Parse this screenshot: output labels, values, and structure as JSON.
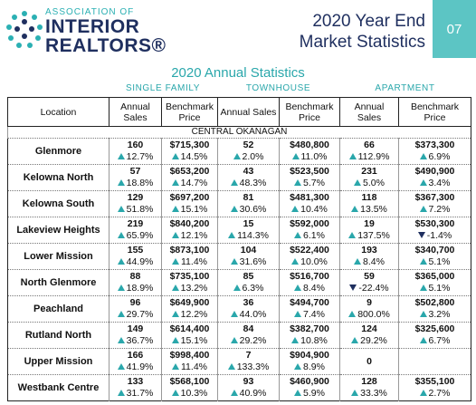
{
  "header": {
    "logo": {
      "line1": "ASSOCIATION OF",
      "line2": "INTERIOR",
      "line3": "REALTORS®"
    },
    "title": {
      "line1": "2020 Year End",
      "line2": "Market Statistics"
    },
    "page_number": "07"
  },
  "subtitle": "2020 Annual Statistics",
  "groups": [
    "SINGLE FAMILY",
    "TOWNHOUSE",
    "APARTMENT"
  ],
  "table": {
    "columns": [
      "Location",
      "Annual Sales",
      "Benchmark Price",
      "Annual Sales",
      "Benchmark Price",
      "Annual Sales",
      "Benchmark Price"
    ],
    "section": "CENTRAL OKANAGAN",
    "rows": [
      {
        "location": "Glenmore",
        "cells": [
          {
            "value": "160",
            "change": "12.7%"
          },
          {
            "value": "$715,300",
            "change": "14.5%"
          },
          {
            "value": "52",
            "change": "2.0%"
          },
          {
            "value": "$480,800",
            "change": "11.0%"
          },
          {
            "value": "66",
            "change": "112.9%"
          },
          {
            "value": "$373,300",
            "change": "6.9%"
          }
        ]
      },
      {
        "location": "Kelowna North",
        "cells": [
          {
            "value": "57",
            "change": "18.8%"
          },
          {
            "value": "$653,200",
            "change": "14.7%"
          },
          {
            "value": "43",
            "change": "48.3%"
          },
          {
            "value": "$523,500",
            "change": "5.7%"
          },
          {
            "value": "231",
            "change": "5.0%"
          },
          {
            "value": "$490,900",
            "change": "3.4%"
          }
        ]
      },
      {
        "location": "Kelowna South",
        "cells": [
          {
            "value": "129",
            "change": "51.8%"
          },
          {
            "value": "$697,200",
            "change": "15.1%"
          },
          {
            "value": "81",
            "change": "30.6%"
          },
          {
            "value": "$481,300",
            "change": "10.4%"
          },
          {
            "value": "118",
            "change": "13.5%"
          },
          {
            "value": "$367,300",
            "change": "7.2%"
          }
        ]
      },
      {
        "location": "Lakeview Heights",
        "cells": [
          {
            "value": "219",
            "change": "65.9%"
          },
          {
            "value": "$840,200",
            "change": "12.1%"
          },
          {
            "value": "15",
            "change": "114.3%"
          },
          {
            "value": "$592,000",
            "change": "6.1%"
          },
          {
            "value": "19",
            "change": "137.5%"
          },
          {
            "value": "$530,300",
            "change": "-1.4%"
          }
        ]
      },
      {
        "location": "Lower Mission",
        "cells": [
          {
            "value": "155",
            "change": "44.9%"
          },
          {
            "value": "$873,100",
            "change": "11.4%"
          },
          {
            "value": "104",
            "change": "31.6%"
          },
          {
            "value": "$522,400",
            "change": "10.0%"
          },
          {
            "value": "193",
            "change": "8.4%"
          },
          {
            "value": "$340,700",
            "change": "5.1%"
          }
        ]
      },
      {
        "location": "North Glenmore",
        "cells": [
          {
            "value": "88",
            "change": "18.9%"
          },
          {
            "value": "$735,100",
            "change": "13.2%"
          },
          {
            "value": "85",
            "change": "6.3%"
          },
          {
            "value": "$516,700",
            "change": "8.4%"
          },
          {
            "value": "59",
            "change": "-22.4%"
          },
          {
            "value": "$365,000",
            "change": "5.1%"
          }
        ]
      },
      {
        "location": "Peachland",
        "cells": [
          {
            "value": "96",
            "change": "29.7%"
          },
          {
            "value": "$649,900",
            "change": "12.2%"
          },
          {
            "value": "36",
            "change": "44.0%"
          },
          {
            "value": "$494,700",
            "change": "7.4%"
          },
          {
            "value": "9",
            "change": "800.0%"
          },
          {
            "value": "$502,800",
            "change": "3.2%"
          }
        ]
      },
      {
        "location": "Rutland North",
        "cells": [
          {
            "value": "149",
            "change": "36.7%"
          },
          {
            "value": "$614,400",
            "change": "15.1%"
          },
          {
            "value": "84",
            "change": "29.2%"
          },
          {
            "value": "$382,700",
            "change": "10.8%"
          },
          {
            "value": "124",
            "change": "29.2%"
          },
          {
            "value": "$325,600",
            "change": "6.7%"
          }
        ]
      },
      {
        "location": "Upper Mission",
        "cells": [
          {
            "value": "166",
            "change": "41.9%"
          },
          {
            "value": "$998,400",
            "change": "11.4%"
          },
          {
            "value": "7",
            "change": "133.3%"
          },
          {
            "value": "$904,900",
            "change": "8.9%"
          },
          {
            "value": "0"
          }
        ]
      },
      {
        "location": "Westbank Centre",
        "cells": [
          {
            "value": "133",
            "change": "31.7%"
          },
          {
            "value": "$568,100",
            "change": "10.3%"
          },
          {
            "value": "93",
            "change": "40.9%"
          },
          {
            "value": "$460,900",
            "change": "5.9%"
          },
          {
            "value": "128",
            "change": "33.3%"
          },
          {
            "value": "$355,100",
            "change": "2.7%"
          }
        ]
      }
    ]
  }
}
